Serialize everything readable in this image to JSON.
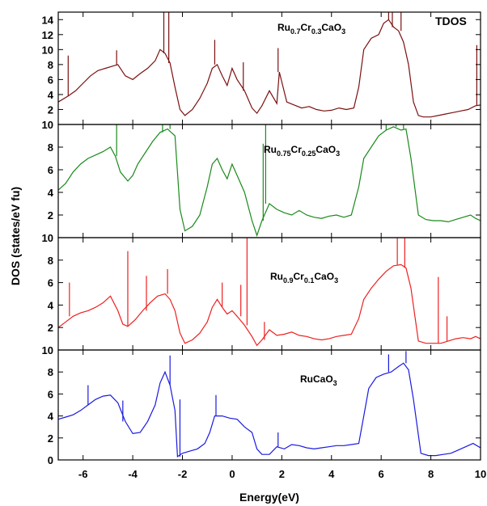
{
  "chart_data": {
    "type": "line",
    "xlabel": "Energy(eV)",
    "ylabel": "DOS (states/eV fu)",
    "annotation": "TDOS",
    "xlim": [
      -7,
      10
    ],
    "x_ticks": [
      "-6",
      "-4",
      "-2",
      "0",
      "2",
      "4",
      "6",
      "8",
      "10"
    ],
    "grid": false,
    "panels": [
      {
        "label_parts": [
          [
            "Ru",
            ""
          ],
          [
            "0.7",
            "sub"
          ],
          [
            "Cr",
            ""
          ],
          [
            "0.3",
            "sub"
          ],
          [
            "CaO",
            ""
          ],
          [
            "3",
            "sub"
          ]
        ],
        "color": "#7b1010",
        "ylim": [
          0,
          15
        ],
        "y_ticks": [
          "2",
          "4",
          "6",
          "8",
          "10",
          "12",
          "14"
        ],
        "x": [
          -7,
          -6.6,
          -6.3,
          -6.0,
          -5.7,
          -5.4,
          -5.1,
          -4.8,
          -4.6,
          -4.3,
          -4.0,
          -3.7,
          -3.4,
          -3.1,
          -2.9,
          -2.7,
          -2.5,
          -2.3,
          -2.1,
          -1.9,
          -1.6,
          -1.3,
          -1.0,
          -0.8,
          -0.6,
          -0.4,
          -0.2,
          0.0,
          0.2,
          0.5,
          0.8,
          1.0,
          1.2,
          1.5,
          1.8,
          1.9,
          2.2,
          2.5,
          2.8,
          3.1,
          3.4,
          3.7,
          4.0,
          4.3,
          4.6,
          4.9,
          5.1,
          5.3,
          5.6,
          5.9,
          6.1,
          6.3,
          6.5,
          6.7,
          6.9,
          7.1,
          7.3,
          7.5,
          7.7,
          8.0,
          8.3,
          8.6,
          8.9,
          9.2,
          9.5,
          9.8,
          10.0
        ],
        "values": [
          3,
          3.8,
          4.5,
          5.5,
          6.5,
          7.2,
          7.5,
          7.8,
          8,
          6.5,
          6,
          6.8,
          7.5,
          8.5,
          10,
          9.5,
          8.2,
          5,
          2,
          1.2,
          2,
          3.5,
          5.5,
          7.5,
          8,
          6.5,
          5.2,
          7.5,
          6,
          4.5,
          2.2,
          1.5,
          2.5,
          4.5,
          2.8,
          7,
          3,
          2.6,
          2.2,
          2.4,
          2,
          1.8,
          1.9,
          2.2,
          2,
          2.2,
          5,
          10,
          11.5,
          12,
          13.5,
          14,
          13,
          12.5,
          11,
          8,
          3,
          1.2,
          1.0,
          1.0,
          1.2,
          1.4,
          1.6,
          1.8,
          2.0,
          2.5,
          2.6
        ],
        "spikes": [
          [
            -6.6,
            9.2
          ],
          [
            -4.65,
            9.9
          ],
          [
            -2.75,
            15
          ],
          [
            -2.55,
            15
          ],
          [
            -0.7,
            11.3
          ],
          [
            0.45,
            8.3
          ],
          [
            1.85,
            10.2
          ],
          [
            6.3,
            15
          ],
          [
            6.45,
            15
          ],
          [
            6.8,
            15
          ],
          [
            9.85,
            10.6
          ]
        ]
      },
      {
        "label_parts": [
          [
            "Ru",
            ""
          ],
          [
            "0.75",
            "sub"
          ],
          [
            "Cr",
            ""
          ],
          [
            "0.25",
            "sub"
          ],
          [
            "CaO",
            ""
          ],
          [
            "3",
            "sub"
          ]
        ],
        "color": "#1a8a1a",
        "ylim": [
          0,
          10
        ],
        "y_ticks": [
          "2",
          "4",
          "6",
          "8",
          "10"
        ],
        "x": [
          -7,
          -6.7,
          -6.4,
          -6.1,
          -5.8,
          -5.5,
          -5.2,
          -4.9,
          -4.7,
          -4.5,
          -4.2,
          -4.0,
          -3.8,
          -3.5,
          -3.2,
          -2.9,
          -2.6,
          -2.3,
          -2.1,
          -1.9,
          -1.6,
          -1.3,
          -1.0,
          -0.8,
          -0.6,
          -0.4,
          -0.2,
          0.0,
          0.2,
          0.5,
          0.8,
          1.0,
          1.2,
          1.5,
          1.8,
          2.1,
          2.4,
          2.7,
          3.0,
          3.3,
          3.6,
          3.9,
          4.2,
          4.5,
          4.8,
          5.1,
          5.3,
          5.6,
          5.9,
          6.2,
          6.5,
          6.8,
          7.0,
          7.2,
          7.5,
          7.8,
          8.1,
          8.4,
          8.7,
          9.0,
          9.3,
          9.6,
          9.8,
          10.0
        ],
        "values": [
          4.2,
          4.8,
          5.8,
          6.5,
          7.0,
          7.3,
          7.6,
          8.0,
          7.2,
          5.8,
          5.0,
          5.5,
          6.5,
          7.5,
          8.5,
          9.3,
          9.6,
          9.0,
          2.5,
          0.6,
          1.0,
          2.0,
          4.5,
          6.5,
          7.0,
          6.0,
          5.2,
          6.5,
          5.5,
          4.0,
          1.5,
          0.2,
          1.5,
          3.0,
          2.5,
          2.2,
          2.0,
          2.4,
          2.0,
          1.8,
          1.7,
          1.9,
          2.0,
          1.8,
          2.0,
          4.5,
          7.0,
          8.0,
          9.0,
          9.5,
          9.8,
          9.5,
          9.6,
          7.0,
          2.0,
          1.6,
          1.5,
          1.5,
          1.4,
          1.6,
          1.8,
          2.0,
          1.7,
          1.5
        ],
        "spikes": [
          [
            -4.65,
            10
          ],
          [
            -2.8,
            10
          ],
          [
            -2.5,
            10
          ],
          [
            1.35,
            10
          ],
          [
            1.25,
            8.3
          ],
          [
            6.2,
            10
          ],
          [
            6.6,
            10
          ],
          [
            6.9,
            10
          ]
        ]
      },
      {
        "label_parts": [
          [
            "Ru",
            ""
          ],
          [
            "0.9",
            "sub"
          ],
          [
            "Cr",
            ""
          ],
          [
            "0.1",
            "sub"
          ],
          [
            "CaO",
            ""
          ],
          [
            "3",
            "sub"
          ]
        ],
        "color": "#ee2020",
        "ylim": [
          0,
          10
        ],
        "y_ticks": [
          "2",
          "4",
          "6",
          "8",
          "10"
        ],
        "x": [
          -7,
          -6.7,
          -6.4,
          -6.1,
          -5.8,
          -5.5,
          -5.2,
          -4.9,
          -4.6,
          -4.4,
          -4.2,
          -3.9,
          -3.6,
          -3.3,
          -3.0,
          -2.7,
          -2.5,
          -2.3,
          -2.1,
          -1.9,
          -1.6,
          -1.3,
          -1.0,
          -0.8,
          -0.6,
          -0.4,
          -0.2,
          0.0,
          0.2,
          0.5,
          0.8,
          1.0,
          1.2,
          1.5,
          1.8,
          2.1,
          2.4,
          2.7,
          3.0,
          3.3,
          3.6,
          3.9,
          4.2,
          4.5,
          4.8,
          5.1,
          5.3,
          5.6,
          5.9,
          6.2,
          6.5,
          6.8,
          7.0,
          7.2,
          7.5,
          7.8,
          8.1,
          8.4,
          8.7,
          9.0,
          9.3,
          9.6,
          9.8,
          10.0
        ],
        "values": [
          2,
          2.5,
          3.0,
          3.3,
          3.5,
          3.8,
          4.2,
          4.8,
          3.5,
          2.3,
          2.1,
          2.7,
          3.5,
          4.2,
          4.8,
          5.0,
          4.5,
          3.5,
          1.5,
          0.6,
          0.9,
          1.5,
          2.5,
          3.8,
          4.5,
          3.8,
          3.2,
          3.5,
          3.0,
          2.2,
          1.2,
          0.4,
          0.9,
          1.8,
          1.3,
          1.4,
          1.6,
          1.3,
          1.2,
          1.0,
          0.9,
          1.0,
          1.2,
          1.3,
          1.4,
          2.8,
          4.5,
          5.5,
          6.3,
          7.0,
          7.5,
          7.6,
          7.3,
          5.5,
          0.8,
          0.6,
          0.6,
          0.6,
          0.8,
          1.0,
          1.1,
          1.0,
          1.2,
          1.0
        ],
        "spikes": [
          [
            -6.55,
            6.0
          ],
          [
            -4.2,
            8.8
          ],
          [
            -3.45,
            6.6
          ],
          [
            -2.6,
            7.2
          ],
          [
            -0.4,
            6.0
          ],
          [
            0.35,
            5.8
          ],
          [
            0.6,
            10
          ],
          [
            1.3,
            2.5
          ],
          [
            6.65,
            10
          ],
          [
            6.95,
            10
          ],
          [
            8.3,
            6.5
          ],
          [
            8.65,
            3.0
          ]
        ]
      },
      {
        "label_parts": [
          [
            "RuCaO",
            ""
          ],
          [
            "3",
            "sub"
          ]
        ],
        "color": "#1a1ae0",
        "ylim": [
          0,
          10
        ],
        "y_ticks": [
          "0",
          "2",
          "4",
          "6",
          "8",
          "10"
        ],
        "x": [
          -7,
          -6.7,
          -6.4,
          -6.1,
          -5.8,
          -5.5,
          -5.2,
          -4.9,
          -4.6,
          -4.3,
          -4.0,
          -3.7,
          -3.4,
          -3.1,
          -2.9,
          -2.7,
          -2.5,
          -2.3,
          -2.2,
          -2.0,
          -1.7,
          -1.4,
          -1.1,
          -0.9,
          -0.7,
          -0.4,
          -0.1,
          0.2,
          0.5,
          0.8,
          1.0,
          1.2,
          1.5,
          1.8,
          2.1,
          2.4,
          2.7,
          3.0,
          3.3,
          3.6,
          3.9,
          4.2,
          4.5,
          4.8,
          5.1,
          5.3,
          5.5,
          5.8,
          6.1,
          6.4,
          6.7,
          6.9,
          7.1,
          7.3,
          7.6,
          7.9,
          8.2,
          8.5,
          8.8,
          9.1,
          9.4,
          9.7,
          10.0
        ],
        "values": [
          3.7,
          3.9,
          4.1,
          4.5,
          5.0,
          5.5,
          5.8,
          5.9,
          5.2,
          3.5,
          2.4,
          2.5,
          3.5,
          5.0,
          7.0,
          8.0,
          6.8,
          4.5,
          0.3,
          0.6,
          0.8,
          1.0,
          1.5,
          2.5,
          4.0,
          4.0,
          3.8,
          3.7,
          3.0,
          2.5,
          1.0,
          0.5,
          0.5,
          1.2,
          1.0,
          1.4,
          1.3,
          1.1,
          1.0,
          1.1,
          1.2,
          1.3,
          1.3,
          1.4,
          1.5,
          4.0,
          6.5,
          7.5,
          7.8,
          8.0,
          8.5,
          8.8,
          8.2,
          5.5,
          0.6,
          0.4,
          0.4,
          0.5,
          0.6,
          0.9,
          1.2,
          1.5,
          1.1
        ],
        "spikes": [
          [
            -5.8,
            6.8
          ],
          [
            -4.4,
            5.4
          ],
          [
            -2.5,
            9.5
          ],
          [
            -2.1,
            5.5
          ],
          [
            -0.65,
            5.9
          ],
          [
            1.85,
            2.5
          ],
          [
            6.3,
            9.6
          ],
          [
            7.0,
            9.9
          ]
        ]
      }
    ]
  }
}
